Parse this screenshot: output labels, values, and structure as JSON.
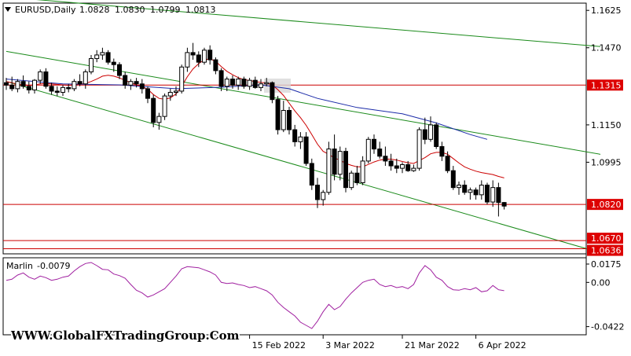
{
  "chart_data": [
    {
      "type": "candlestick",
      "header": {
        "symbol": "EURUSD,Daily",
        "open": "1.0828",
        "high": "1.0830",
        "low": "1.0799",
        "close": "1.0813"
      },
      "price_labels": [
        "1.1625",
        "1.1470",
        "1.1315",
        "1.1150",
        "1.0995",
        "1.0820",
        "1.0670",
        "1.0636"
      ],
      "highlighted_levels": [
        {
          "value": 1.1315,
          "label": "1.1315",
          "color": "#cc0000"
        },
        {
          "value": 1.082,
          "label": "1.0820",
          "color": "#cc0000"
        },
        {
          "value": 1.067,
          "label": "1.0670",
          "color": "#cc0000"
        },
        {
          "value": 1.0636,
          "label": "1.0636",
          "color": "#cc0000"
        }
      ],
      "ylim": [
        1.0615,
        1.1655
      ],
      "candles": [
        [
          1.1325,
          1.1345,
          1.1295,
          1.1315
        ],
        [
          1.1315,
          1.135,
          1.129,
          1.13
        ],
        [
          1.13,
          1.134,
          1.1285,
          1.133
        ],
        [
          1.133,
          1.1355,
          1.13,
          1.131
        ],
        [
          1.131,
          1.133,
          1.128,
          1.1295
        ],
        [
          1.1295,
          1.134,
          1.128,
          1.1335
        ],
        [
          1.1335,
          1.138,
          1.132,
          1.137
        ],
        [
          1.137,
          1.1385,
          1.13,
          1.131
        ],
        [
          1.131,
          1.1325,
          1.1275,
          1.129
        ],
        [
          1.129,
          1.131,
          1.127,
          1.1285
        ],
        [
          1.1285,
          1.1315,
          1.127,
          1.1305
        ],
        [
          1.1305,
          1.132,
          1.1285,
          1.13
        ],
        [
          1.13,
          1.134,
          1.129,
          1.133
        ],
        [
          1.133,
          1.136,
          1.131,
          1.132
        ],
        [
          1.132,
          1.138,
          1.13,
          1.137
        ],
        [
          1.137,
          1.144,
          1.136,
          1.1425
        ],
        [
          1.1425,
          1.146,
          1.141,
          1.144
        ],
        [
          1.144,
          1.147,
          1.142,
          1.145
        ],
        [
          1.145,
          1.146,
          1.14,
          1.141
        ],
        [
          1.141,
          1.1425,
          1.137,
          1.14
        ],
        [
          1.14,
          1.141,
          1.134,
          1.1355
        ],
        [
          1.1355,
          1.137,
          1.13,
          1.1315
        ],
        [
          1.1315,
          1.134,
          1.1295,
          1.133
        ],
        [
          1.133,
          1.1345,
          1.1305,
          1.132
        ],
        [
          1.132,
          1.134,
          1.128,
          1.13
        ],
        [
          1.13,
          1.131,
          1.124,
          1.126
        ],
        [
          1.126,
          1.1275,
          1.114,
          1.116
        ],
        [
          1.116,
          1.12,
          1.113,
          1.1185
        ],
        [
          1.1185,
          1.128,
          1.117,
          1.127
        ],
        [
          1.127,
          1.13,
          1.125,
          1.1285
        ],
        [
          1.1285,
          1.131,
          1.127,
          1.129
        ],
        [
          1.129,
          1.14,
          1.128,
          1.139
        ],
        [
          1.139,
          1.147,
          1.137,
          1.145
        ],
        [
          1.145,
          1.149,
          1.142,
          1.144
        ],
        [
          1.144,
          1.1455,
          1.139,
          1.141
        ],
        [
          1.141,
          1.147,
          1.14,
          1.146
        ],
        [
          1.146,
          1.148,
          1.14,
          1.142
        ],
        [
          1.142,
          1.143,
          1.136,
          1.1375
        ],
        [
          1.1375,
          1.1385,
          1.129,
          1.131
        ],
        [
          1.131,
          1.135,
          1.129,
          1.134
        ],
        [
          1.134,
          1.1355,
          1.13,
          1.1315
        ],
        [
          1.1315,
          1.135,
          1.1295,
          1.134
        ],
        [
          1.134,
          1.135,
          1.13,
          1.131
        ],
        [
          1.131,
          1.1345,
          1.1295,
          1.1335
        ],
        [
          1.1335,
          1.135,
          1.13,
          1.1305
        ],
        [
          1.1305,
          1.134,
          1.129,
          1.132
        ],
        [
          1.132,
          1.1345,
          1.131,
          1.1325
        ],
        [
          1.1325,
          1.133,
          1.124,
          1.1255
        ],
        [
          1.1255,
          1.127,
          1.111,
          1.113
        ],
        [
          1.113,
          1.125,
          1.112,
          1.121
        ],
        [
          1.121,
          1.1225,
          1.111,
          1.113
        ],
        [
          1.113,
          1.115,
          1.106,
          1.108
        ],
        [
          1.108,
          1.112,
          1.105,
          1.11
        ],
        [
          1.11,
          1.112,
          1.098,
          1.099
        ],
        [
          1.099,
          1.101,
          1.088,
          1.09
        ],
        [
          1.09,
          1.093,
          1.0805,
          1.084
        ],
        [
          1.084,
          1.088,
          1.0815,
          1.087
        ],
        [
          1.087,
          1.108,
          1.086,
          1.105
        ],
        [
          1.105,
          1.111,
          1.092,
          1.0945
        ],
        [
          1.0945,
          1.106,
          1.092,
          1.104
        ],
        [
          1.104,
          1.1055,
          1.087,
          1.089
        ],
        [
          1.089,
          1.096,
          1.088,
          1.095
        ],
        [
          1.095,
          1.098,
          1.09,
          1.091
        ],
        [
          1.091,
          1.102,
          1.09,
          1.1
        ],
        [
          1.1,
          1.11,
          1.099,
          1.109
        ],
        [
          1.109,
          1.111,
          1.103,
          1.105
        ],
        [
          1.105,
          1.108,
          1.101,
          1.102
        ],
        [
          1.102,
          1.106,
          1.098,
          1.1
        ],
        [
          1.1,
          1.103,
          1.096,
          1.098
        ],
        [
          1.098,
          1.101,
          1.095,
          1.097
        ],
        [
          1.097,
          1.0995,
          1.095,
          1.0985
        ],
        [
          1.0985,
          1.1,
          1.0955,
          1.096
        ],
        [
          1.096,
          1.0985,
          1.0955,
          1.097
        ],
        [
          1.097,
          1.114,
          1.096,
          1.113
        ],
        [
          1.113,
          1.118,
          1.107,
          1.109
        ],
        [
          1.109,
          1.1185,
          1.108,
          1.115
        ],
        [
          1.115,
          1.116,
          1.105,
          1.106
        ],
        [
          1.106,
          1.108,
          1.1,
          1.102
        ],
        [
          1.102,
          1.104,
          1.095,
          1.096
        ],
        [
          1.096,
          1.098,
          1.088,
          1.089
        ],
        [
          1.089,
          1.0915,
          1.086,
          1.09
        ],
        [
          1.09,
          1.092,
          1.086,
          1.087
        ],
        [
          1.087,
          1.089,
          1.084,
          1.088
        ],
        [
          1.088,
          1.089,
          1.084,
          1.086
        ],
        [
          1.086,
          1.092,
          1.084,
          1.09
        ],
        [
          1.09,
          1.091,
          1.082,
          1.083
        ],
        [
          1.083,
          1.092,
          1.081,
          1.089
        ],
        [
          1.089,
          1.091,
          1.077,
          1.0828
        ],
        [
          1.0828,
          1.083,
          1.0799,
          1.0813
        ]
      ],
      "ma_red": [
        1.133,
        1.1325,
        1.1318,
        1.1316,
        1.1314,
        1.1316,
        1.132,
        1.1322,
        1.132,
        1.1318,
        1.1316,
        1.1314,
        1.1316,
        1.1318,
        1.1322,
        1.133,
        1.134,
        1.1352,
        1.1356,
        1.1352,
        1.1345,
        1.1335,
        1.1325,
        1.1316,
        1.1308,
        1.1298,
        1.1276,
        1.126,
        1.1256,
        1.1262,
        1.1278,
        1.131,
        1.135,
        1.1382,
        1.1404,
        1.142,
        1.1424,
        1.1414,
        1.1392,
        1.1372,
        1.1358,
        1.1346,
        1.1338,
        1.1334,
        1.133,
        1.1326,
        1.1324,
        1.1316,
        1.1296,
        1.1272,
        1.124,
        1.1208,
        1.118,
        1.1148,
        1.111,
        1.107,
        1.104,
        1.1028,
        1.1012,
        1.1004,
        1.099,
        1.0982,
        1.0976,
        1.0976,
        1.0986,
        1.0996,
        1.1004,
        1.1008,
        1.1008,
        1.1004,
        1.0998,
        1.0993,
        1.099,
        1.1002,
        1.1014,
        1.103,
        1.1036,
        1.1036,
        1.1028,
        1.101,
        1.0992,
        1.0976,
        1.0966,
        1.0958,
        1.0952,
        1.0948,
        1.0944,
        1.0936,
        1.093
      ],
      "ma_blue": [
        [
          0,
          1.134
        ],
        [
          10,
          1.132
        ],
        [
          20,
          1.1316
        ],
        [
          30,
          1.13
        ],
        [
          38,
          1.1306
        ],
        [
          45,
          1.1316
        ],
        [
          50,
          1.13
        ],
        [
          55,
          1.126
        ],
        [
          62,
          1.1222
        ],
        [
          70,
          1.1196
        ],
        [
          76,
          1.1158
        ],
        [
          82,
          1.111
        ],
        [
          85,
          1.109
        ]
      ],
      "indicator": {
        "name": "Marlin",
        "value": "-0.0079",
        "ticks": [
          "0.0175",
          "0.00",
          "-0.0422"
        ],
        "ylim": [
          -0.05,
          0.0235
        ],
        "values": [
          0.002,
          0.003,
          0.007,
          0.009,
          0.005,
          0.003,
          0.006,
          0.0045,
          0.002,
          0.003,
          0.005,
          0.006,
          0.011,
          0.015,
          0.018,
          0.019,
          0.016,
          0.0125,
          0.012,
          0.008,
          0.0065,
          0.004,
          -0.002,
          -0.0075,
          -0.01,
          -0.014,
          -0.012,
          -0.009,
          -0.006,
          0.0,
          0.006,
          0.013,
          0.015,
          0.0145,
          0.014,
          0.012,
          0.01,
          0.007,
          0.0,
          -0.001,
          -0.0005,
          -0.002,
          -0.003,
          -0.005,
          -0.004,
          -0.006,
          -0.008,
          -0.012,
          -0.019,
          -0.024,
          -0.028,
          -0.032,
          -0.038,
          -0.041,
          -0.044,
          -0.037,
          -0.028,
          -0.021,
          -0.026,
          -0.023,
          -0.016,
          -0.01,
          -0.005,
          0.0,
          0.002,
          0.003,
          -0.002,
          -0.004,
          -0.003,
          -0.005,
          -0.004,
          -0.006,
          -0.002,
          0.009,
          0.016,
          0.012,
          0.005,
          0.002,
          -0.004,
          -0.007,
          -0.0075,
          -0.006,
          -0.007,
          -0.005,
          -0.009,
          -0.008,
          -0.003,
          -0.007,
          -0.0079
        ]
      },
      "x_labels": [
        {
          "index": 43,
          "label": "15 Feb 2022"
        },
        {
          "index": 56,
          "label": "3 Mar 2022"
        },
        {
          "index": 70,
          "label": "21 Mar 2022"
        },
        {
          "index": 83,
          "label": "6 Apr 2022"
        }
      ],
      "channel_lines": {
        "color": "#1a8a1a",
        "lines": [
          [
            [
              0,
              1.1455
            ],
            [
              105,
              1.1028
            ]
          ],
          [
            [
              0,
              1.168
            ],
            [
              105,
              1.1475
            ]
          ],
          [
            [
              0,
              1.133
            ],
            [
              105,
              1.062
            ]
          ]
        ]
      },
      "watermark": "WWW.GlobalFXTradingGroup.Com",
      "colors": {
        "bull_candle": "#ffffff",
        "bear_candle": "#000000",
        "ma_red": "#cc0000",
        "ma_blue": "#1a2aa8",
        "indicator_line": "#a020a0",
        "label_box": "#dd0000"
      }
    }
  ]
}
